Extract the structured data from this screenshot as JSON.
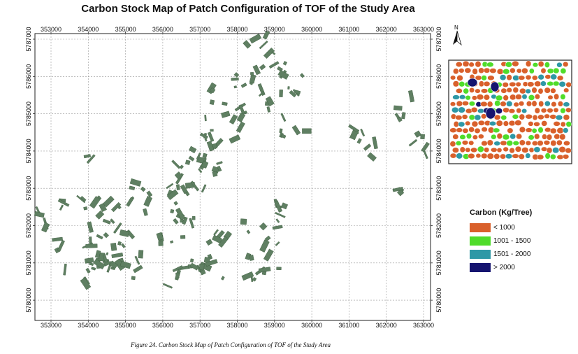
{
  "title": "Carbon Stock Map of Patch Configuration of TOF of the Study Area",
  "caption": "Figure 24. Carbon Stock Map of Patch Configuration of TOF of the Study Area",
  "north_label": "N",
  "easting_ticks": [
    "353000",
    "354000",
    "355000",
    "356000",
    "357000",
    "358000",
    "359000",
    "360000",
    "361000",
    "362000",
    "363000"
  ],
  "northing_ticks": [
    "5787000",
    "5786000",
    "5785000",
    "5784000",
    "5783000",
    "5782000",
    "5781000",
    "5780000"
  ],
  "legend": {
    "title": "Carbon (Kg/Tree)",
    "items": [
      {
        "label": "< 1000",
        "color": "#d9602b"
      },
      {
        "label": "1001 - 1500",
        "color": "#4fdc2a"
      },
      {
        "label": "1501 - 2000",
        "color": "#2e98a6"
      },
      {
        "label": "> 2000",
        "color": "#15146f"
      }
    ]
  },
  "patch_color": "#5f7f62"
}
